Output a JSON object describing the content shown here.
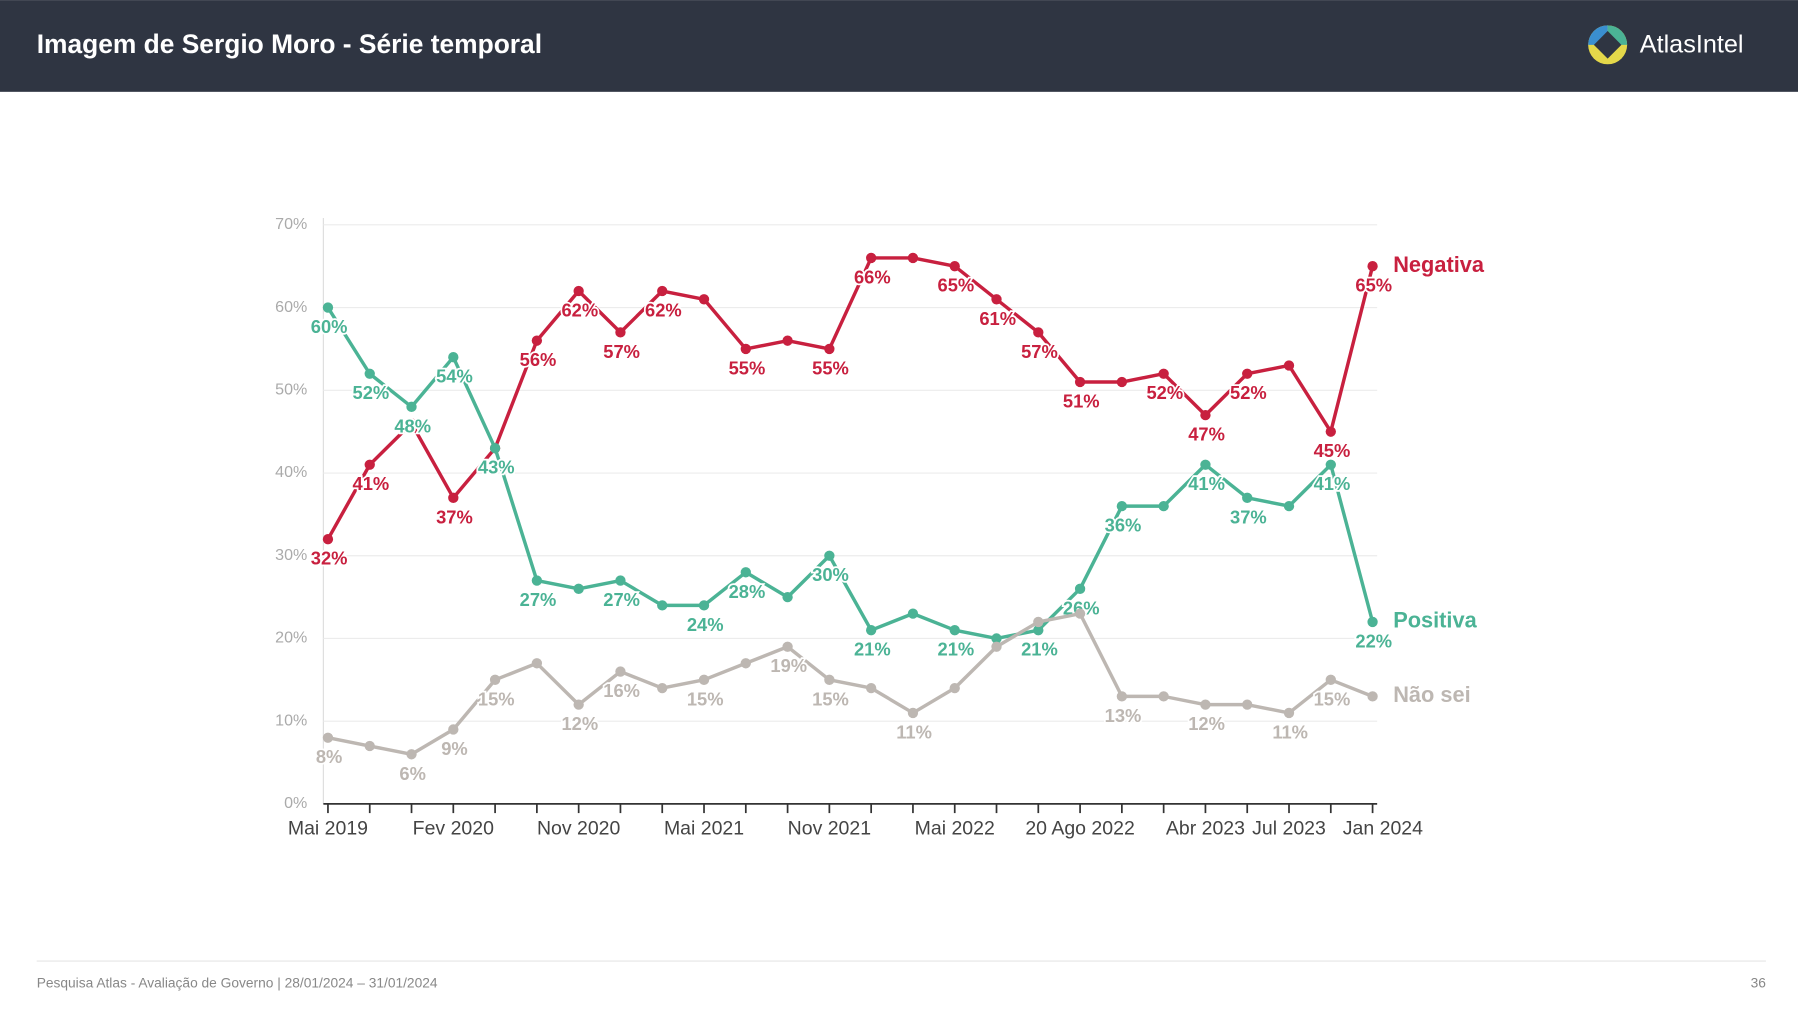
{
  "header": {
    "title": "Imagem de Sergio Moro - Série temporal",
    "logo": "AtlasIntel"
  },
  "footer": {
    "source": "Pesquisa Atlas - Avaliação de Governo | 28/01/2024 – 31/01/2024",
    "page": "36"
  },
  "chart_data": {
    "type": "line",
    "categories": [
      "Mai 2019",
      null,
      null,
      "Fev 2020",
      null,
      null,
      "Nov 2020",
      null,
      null,
      "Mai 2021",
      null,
      null,
      "Nov 2021",
      null,
      null,
      "Mai 2022",
      null,
      null,
      "20 Ago 2022",
      null,
      null,
      "Abr 2023",
      null,
      "Jul 2023",
      null,
      "Jan 2024"
    ],
    "series": [
      {
        "name": "Negativa",
        "color": "#c8203f",
        "values": [
          32,
          41,
          46,
          37,
          43,
          56,
          62,
          57,
          62,
          61,
          55,
          56,
          55,
          66,
          66,
          65,
          61,
          57,
          51,
          51,
          52,
          47,
          52,
          53,
          45,
          65
        ],
        "value_labels": [
          "32%",
          "41%",
          null,
          "37%",
          null,
          "56%",
          "62%",
          "57%",
          "62%",
          null,
          "55%",
          null,
          "55%",
          "66%",
          null,
          "65%",
          "61%",
          "57%",
          "51%",
          null,
          "52%",
          "47%",
          "52%",
          null,
          "45%",
          "65%"
        ]
      },
      {
        "name": "Positiva",
        "color": "#4bb395",
        "values": [
          60,
          52,
          48,
          54,
          43,
          27,
          26,
          27,
          24,
          24,
          28,
          25,
          30,
          21,
          23,
          21,
          20,
          21,
          26,
          36,
          36,
          41,
          37,
          36,
          41,
          22
        ],
        "value_labels": [
          "60%",
          "52%",
          "48%",
          "54%",
          "43%",
          "27%",
          null,
          "27%",
          null,
          "24%",
          "28%",
          null,
          "30%",
          "21%",
          null,
          "21%",
          null,
          "21%",
          "26%",
          "36%",
          null,
          "41%",
          "37%",
          null,
          "41%",
          "22%"
        ]
      },
      {
        "name": "Não sei",
        "color": "#bdb7b2",
        "values": [
          8,
          7,
          6,
          9,
          15,
          17,
          12,
          16,
          14,
          15,
          17,
          19,
          15,
          14,
          11,
          14,
          19,
          22,
          23,
          13,
          13,
          12,
          12,
          11,
          15,
          13
        ],
        "value_labels": [
          "8%",
          null,
          "6%",
          "9%",
          "15%",
          null,
          "12%",
          "16%",
          null,
          "15%",
          null,
          "19%",
          "15%",
          null,
          "11%",
          null,
          null,
          null,
          null,
          "13%",
          null,
          "12%",
          null,
          "11%",
          "15%",
          null
        ]
      }
    ],
    "ylim": [
      0,
      70
    ],
    "yticks": [
      {
        "value": 0,
        "label": "0%"
      },
      {
        "value": 10,
        "label": "10%"
      },
      {
        "value": 20,
        "label": "20%"
      },
      {
        "value": 30,
        "label": "30%"
      },
      {
        "value": 40,
        "label": "40%"
      },
      {
        "value": 50,
        "label": "50%"
      },
      {
        "value": 60,
        "label": "60%"
      },
      {
        "value": 70,
        "label": "70%"
      }
    ],
    "grid": true
  }
}
